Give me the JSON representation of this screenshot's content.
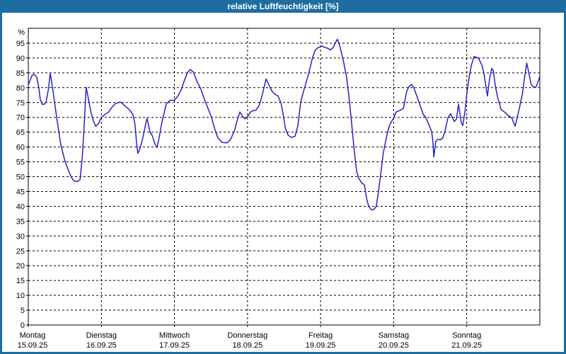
{
  "window": {
    "title": "relative Luftfeuchtigkeit [%]",
    "frame_color": "#1d6da3",
    "titlebar_text_color": "#ffffff",
    "background_color": "#ffffff"
  },
  "chart_data": {
    "type": "line",
    "title": "relative Luftfeuchtigkeit [%]",
    "unit_label": "%",
    "ylim": [
      0,
      100
    ],
    "yticks": [
      0,
      5,
      10,
      15,
      20,
      25,
      30,
      35,
      40,
      45,
      50,
      55,
      60,
      65,
      70,
      75,
      80,
      85,
      90,
      95
    ],
    "x_hours_range": [
      0,
      168
    ],
    "grid": "dashed",
    "axis_color": "#000000",
    "grid_color": "#000000",
    "line_color": "#2323c8",
    "days": [
      {
        "label": "Montag",
        "date": "15.09.25"
      },
      {
        "label": "Dienstag",
        "date": "16.09.25"
      },
      {
        "label": "Mittwoch",
        "date": "17.09.25"
      },
      {
        "label": "Donnerstag",
        "date": "18.09.25"
      },
      {
        "label": "Freitag",
        "date": "19.09.25"
      },
      {
        "label": "Samstag",
        "date": "20.09.25"
      },
      {
        "label": "Sonntag",
        "date": "21.09.25"
      }
    ],
    "series": [
      {
        "name": "relative Luftfeuchtigkeit [%]",
        "points": [
          [
            0,
            81
          ],
          [
            1.2,
            84.1
          ],
          [
            1.9,
            84.5
          ],
          [
            2.8,
            83.5
          ],
          [
            3.5,
            79.8
          ],
          [
            3.9,
            76.1
          ],
          [
            4.6,
            74.3
          ],
          [
            5.4,
            74.5
          ],
          [
            5.8,
            75
          ],
          [
            6.6,
            79.4
          ],
          [
            7.2,
            84.9
          ],
          [
            8.1,
            79
          ],
          [
            8.9,
            73
          ],
          [
            9.7,
            67.4
          ],
          [
            10.5,
            61.8
          ],
          [
            11.2,
            58.6
          ],
          [
            12,
            55.5
          ],
          [
            12.8,
            53.1
          ],
          [
            13.6,
            51.1
          ],
          [
            14.3,
            49.5
          ],
          [
            15.1,
            48.5
          ],
          [
            16.3,
            48.4
          ],
          [
            17,
            49
          ],
          [
            17.7,
            56.3
          ],
          [
            18.2,
            64.2
          ],
          [
            18.6,
            72.1
          ],
          [
            19,
            80.1
          ],
          [
            19.8,
            76
          ],
          [
            20.5,
            72.1
          ],
          [
            21.3,
            69
          ],
          [
            22.1,
            67
          ],
          [
            23,
            67.8
          ],
          [
            23.9,
            69.8
          ],
          [
            25.1,
            70.9
          ],
          [
            26.3,
            71.7
          ],
          [
            27.4,
            73.3
          ],
          [
            28.6,
            74.6
          ],
          [
            30.2,
            75.2
          ],
          [
            31.8,
            73.8
          ],
          [
            33.2,
            72.6
          ],
          [
            34.4,
            70.8
          ],
          [
            35,
            68
          ],
          [
            35.6,
            61
          ],
          [
            36,
            57.8
          ],
          [
            36.7,
            59.5
          ],
          [
            37.6,
            63
          ],
          [
            38.3,
            66.5
          ],
          [
            39,
            69.7
          ],
          [
            40,
            65
          ],
          [
            40.7,
            63.8
          ],
          [
            41.6,
            61
          ],
          [
            42.3,
            59.8
          ],
          [
            43,
            63.4
          ],
          [
            43.7,
            67.4
          ],
          [
            44.6,
            71.4
          ],
          [
            45.3,
            74.5
          ],
          [
            46.5,
            75.7
          ],
          [
            48.1,
            75.8
          ],
          [
            49.3,
            77.5
          ],
          [
            50.3,
            79.5
          ],
          [
            51,
            81.7
          ],
          [
            52.2,
            84.9
          ],
          [
            53.1,
            86.1
          ],
          [
            54.2,
            85.3
          ],
          [
            55.4,
            82.1
          ],
          [
            56.6,
            79.7
          ],
          [
            57.7,
            76.5
          ],
          [
            58.9,
            73.3
          ],
          [
            60,
            70.5
          ],
          [
            61.2,
            66.2
          ],
          [
            62.3,
            63
          ],
          [
            63.7,
            61.5
          ],
          [
            65.3,
            61.4
          ],
          [
            66.4,
            62.5
          ],
          [
            67.7,
            65.5
          ],
          [
            68.5,
            68.6
          ],
          [
            69.5,
            71.8
          ],
          [
            70.4,
            70.3
          ],
          [
            71.1,
            69.5
          ],
          [
            72,
            70.2
          ],
          [
            73,
            71.8
          ],
          [
            73.7,
            72.2
          ],
          [
            74.8,
            72.4
          ],
          [
            75.8,
            74
          ],
          [
            76.7,
            77
          ],
          [
            77.4,
            80
          ],
          [
            78.1,
            82.9
          ],
          [
            79,
            81
          ],
          [
            79.9,
            79
          ],
          [
            80.9,
            77.8
          ],
          [
            82,
            77.2
          ],
          [
            83,
            74.8
          ],
          [
            83.7,
            71
          ],
          [
            84.4,
            66.5
          ],
          [
            85.3,
            64
          ],
          [
            86.4,
            63.2
          ],
          [
            87.6,
            63.6
          ],
          [
            88.5,
            67
          ],
          [
            89.5,
            75.4
          ],
          [
            90.6,
            79.5
          ],
          [
            91.6,
            83
          ],
          [
            92.3,
            85.7
          ],
          [
            93.2,
            89.5
          ],
          [
            94.1,
            92.4
          ],
          [
            95,
            93.4
          ],
          [
            96,
            93.8
          ],
          [
            96.4,
            94
          ],
          [
            97.6,
            93.5
          ],
          [
            98.5,
            93.2
          ],
          [
            99.2,
            92.7
          ],
          [
            100.1,
            93.5
          ],
          [
            100.8,
            95
          ],
          [
            101.5,
            96.3
          ],
          [
            102.2,
            94.5
          ],
          [
            102.9,
            91.5
          ],
          [
            103.6,
            88.5
          ],
          [
            104.6,
            83
          ],
          [
            105.3,
            77
          ],
          [
            106,
            70
          ],
          [
            106.9,
            60.2
          ],
          [
            107.8,
            52
          ],
          [
            108.5,
            49.5
          ],
          [
            109.4,
            48
          ],
          [
            110.4,
            47.2
          ],
          [
            111.1,
            42.7
          ],
          [
            111.8,
            40
          ],
          [
            112.7,
            38.8
          ],
          [
            113.6,
            39
          ],
          [
            114.3,
            40
          ],
          [
            115,
            45
          ],
          [
            115.7,
            50.5
          ],
          [
            116.6,
            58
          ],
          [
            117.8,
            64.2
          ],
          [
            118.7,
            67.5
          ],
          [
            119.9,
            69.6
          ],
          [
            120.8,
            71.8
          ],
          [
            122,
            72.3
          ],
          [
            123.2,
            73
          ],
          [
            124.3,
            78.8
          ],
          [
            125,
            80.3
          ],
          [
            125.9,
            81.1
          ],
          [
            126.6,
            80
          ],
          [
            127.3,
            78.1
          ],
          [
            128.5,
            74.5
          ],
          [
            129.7,
            71
          ],
          [
            130.6,
            69.8
          ],
          [
            131.8,
            67
          ],
          [
            132.5,
            65
          ],
          [
            132.9,
            61.8
          ],
          [
            133.2,
            56.6
          ],
          [
            133.8,
            61.8
          ],
          [
            134.5,
            62.6
          ],
          [
            135.4,
            62.4
          ],
          [
            136.1,
            63
          ],
          [
            136.8,
            65
          ],
          [
            137.8,
            69.8
          ],
          [
            138.7,
            71.2
          ],
          [
            139.9,
            68.6
          ],
          [
            140.6,
            69.4
          ],
          [
            141.3,
            74.4
          ],
          [
            142.2,
            68.2
          ],
          [
            142.7,
            67.2
          ],
          [
            143.4,
            71.8
          ],
          [
            144.1,
            78.5
          ],
          [
            144.8,
            83.7
          ],
          [
            145.5,
            87.5
          ],
          [
            146.4,
            90.5
          ],
          [
            147.3,
            90.2
          ],
          [
            148,
            89.7
          ],
          [
            149,
            87.5
          ],
          [
            149.7,
            84.5
          ],
          [
            150.4,
            79.5
          ],
          [
            150.8,
            77.2
          ],
          [
            151.5,
            83
          ],
          [
            152.2,
            86.5
          ],
          [
            152.7,
            85.8
          ],
          [
            153.4,
            80.5
          ],
          [
            154.1,
            76.9
          ],
          [
            155.3,
            72.6
          ],
          [
            156.4,
            71.8
          ],
          [
            157.6,
            70.6
          ],
          [
            158.8,
            69.8
          ],
          [
            159.9,
            67
          ],
          [
            161.1,
            72.2
          ],
          [
            162.3,
            78.1
          ],
          [
            163,
            83.5
          ],
          [
            163.7,
            88.3
          ],
          [
            164.4,
            85
          ],
          [
            165.1,
            81.3
          ],
          [
            165.8,
            80.3
          ],
          [
            166.7,
            80.1
          ],
          [
            167.4,
            82
          ],
          [
            168,
            83.8
          ]
        ]
      }
    ]
  }
}
